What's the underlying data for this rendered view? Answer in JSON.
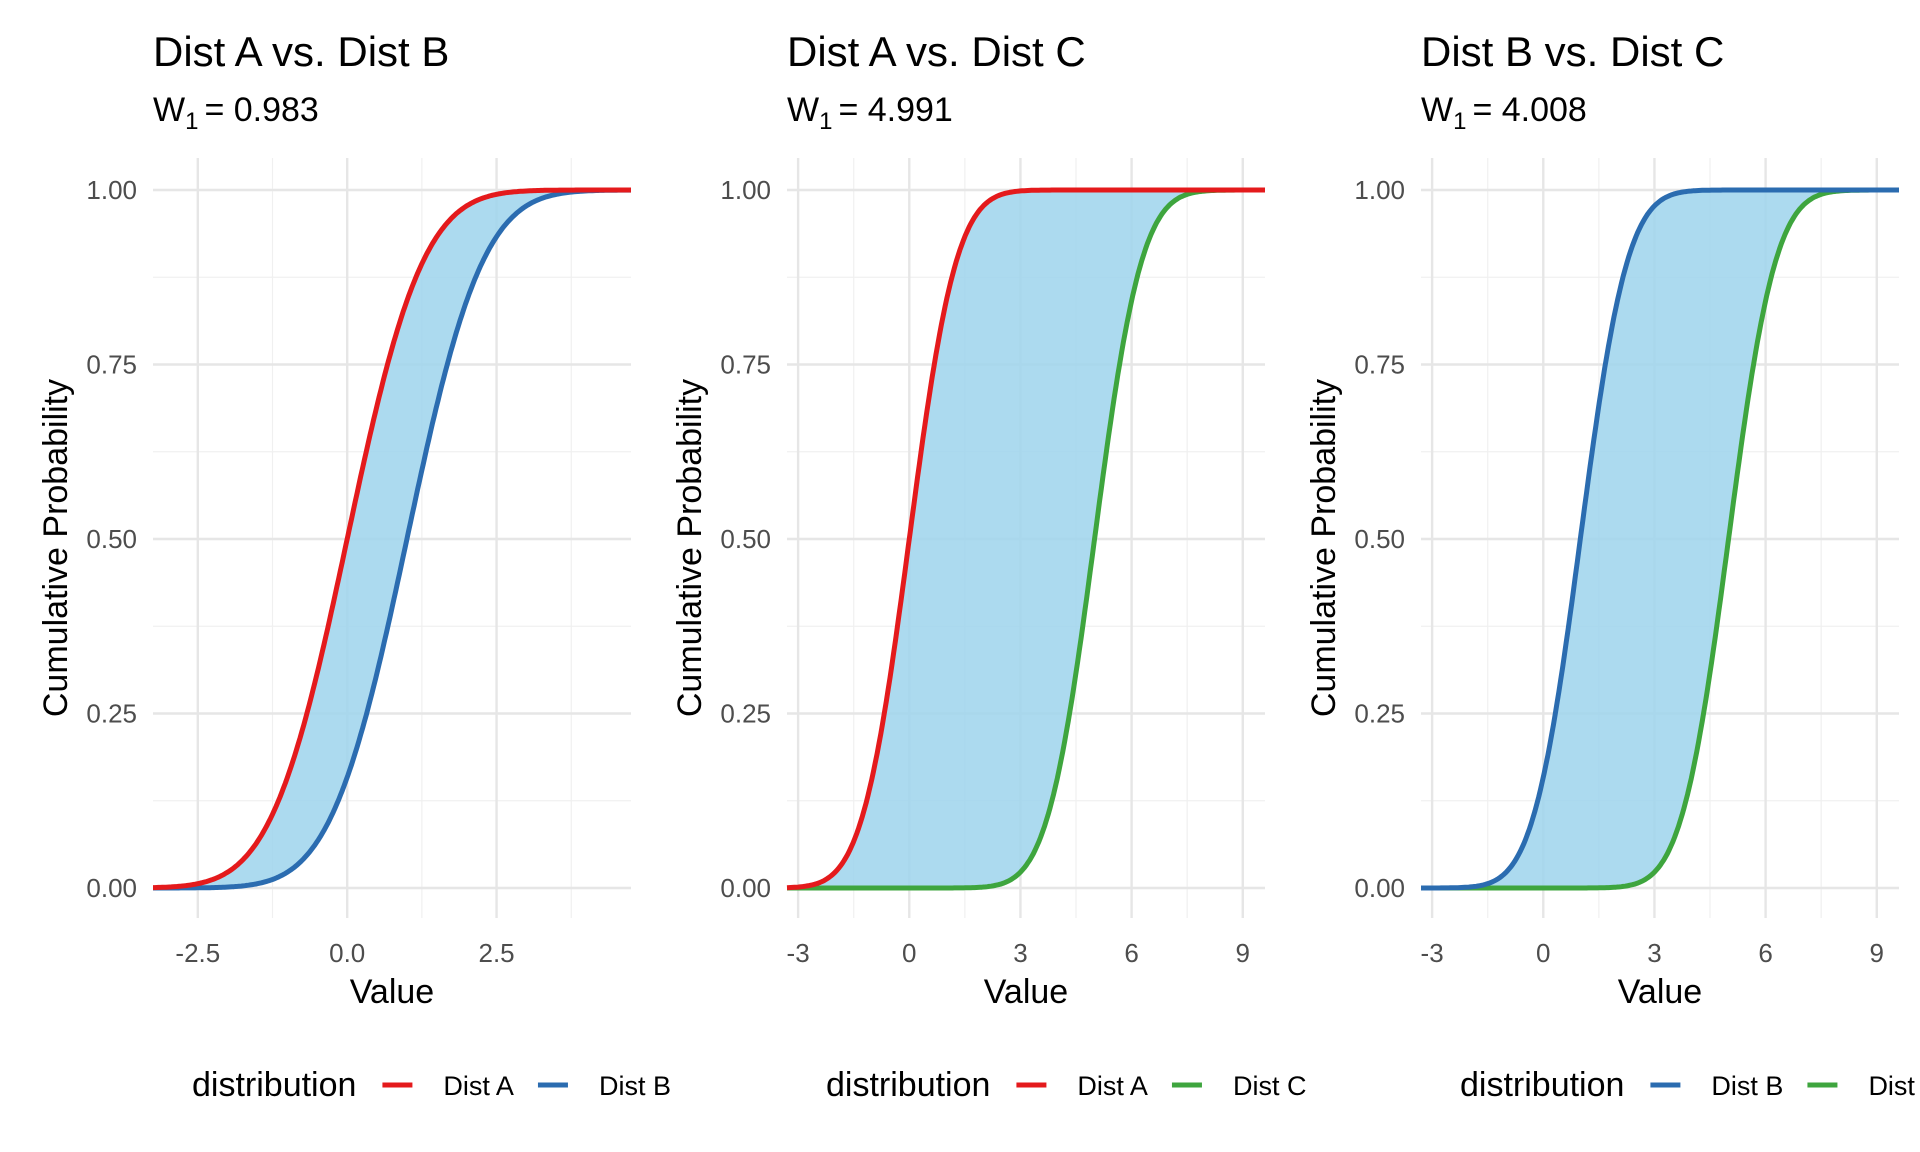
{
  "chart_data": [
    {
      "type": "line",
      "title": "Dist A vs. Dist B",
      "subtitle_prefix": "W",
      "subtitle_sub": "1",
      "subtitle_value": "= 0.983",
      "xlabel": "Value",
      "ylabel": "Cumulative Probability",
      "xlim": [
        -3.25,
        4.75
      ],
      "ylim": [
        0,
        1
      ],
      "x_ticks": [
        -2.5,
        0,
        2.5
      ],
      "x_tick_labels": [
        "-2.5",
        "0.0",
        "2.5"
      ],
      "y_ticks": [
        0,
        0.25,
        0.5,
        0.75,
        1
      ],
      "y_tick_labels": [
        "0.00",
        "0.25",
        "0.50",
        "0.75",
        "1.00"
      ],
      "fill_between": true,
      "fill_color": "#9dd3ec",
      "legend_title": "distribution",
      "legend_position": "bottom",
      "series": [
        {
          "name": "Dist A",
          "color": "#e41a1c",
          "mean": 0.0,
          "sd": 1.0
        },
        {
          "name": "Dist B",
          "color": "#2b6cb0",
          "mean": 1.0,
          "sd": 1.0
        }
      ]
    },
    {
      "type": "line",
      "title": "Dist A vs. Dist C",
      "subtitle_prefix": "W",
      "subtitle_sub": "1",
      "subtitle_value": "= 4.991",
      "xlabel": "Value",
      "ylabel": "Cumulative Probability",
      "xlim": [
        -3.3,
        9.6
      ],
      "ylim": [
        0,
        1
      ],
      "x_ticks": [
        -3,
        0,
        3,
        6,
        9
      ],
      "x_tick_labels": [
        "-3",
        "0",
        "3",
        "6",
        "9"
      ],
      "y_ticks": [
        0,
        0.25,
        0.5,
        0.75,
        1
      ],
      "y_tick_labels": [
        "0.00",
        "0.25",
        "0.50",
        "0.75",
        "1.00"
      ],
      "fill_between": true,
      "fill_color": "#9dd3ec",
      "legend_title": "distribution",
      "legend_position": "bottom",
      "series": [
        {
          "name": "Dist A",
          "color": "#e41a1c",
          "mean": 0.0,
          "sd": 1.0
        },
        {
          "name": "Dist C",
          "color": "#3ea53e",
          "mean": 5.0,
          "sd": 1.0
        }
      ]
    },
    {
      "type": "line",
      "title": "Dist B vs. Dist C",
      "subtitle_prefix": "W",
      "subtitle_sub": "1",
      "subtitle_value": "= 4.008",
      "xlabel": "Value",
      "ylabel": "Cumulative Probability",
      "xlim": [
        -3.3,
        9.6
      ],
      "ylim": [
        0,
        1
      ],
      "x_ticks": [
        -3,
        0,
        3,
        6,
        9
      ],
      "x_tick_labels": [
        "-3",
        "0",
        "3",
        "6",
        "9"
      ],
      "y_ticks": [
        0,
        0.25,
        0.5,
        0.75,
        1
      ],
      "y_tick_labels": [
        "0.00",
        "0.25",
        "0.50",
        "0.75",
        "1.00"
      ],
      "fill_between": true,
      "fill_color": "#9dd3ec",
      "legend_title": "distribution",
      "legend_position": "bottom",
      "series": [
        {
          "name": "Dist B",
          "color": "#2b6cb0",
          "mean": 1.0,
          "sd": 1.0
        },
        {
          "name": "Dist C",
          "color": "#3ea53e",
          "mean": 5.0,
          "sd": 1.0
        }
      ]
    }
  ]
}
